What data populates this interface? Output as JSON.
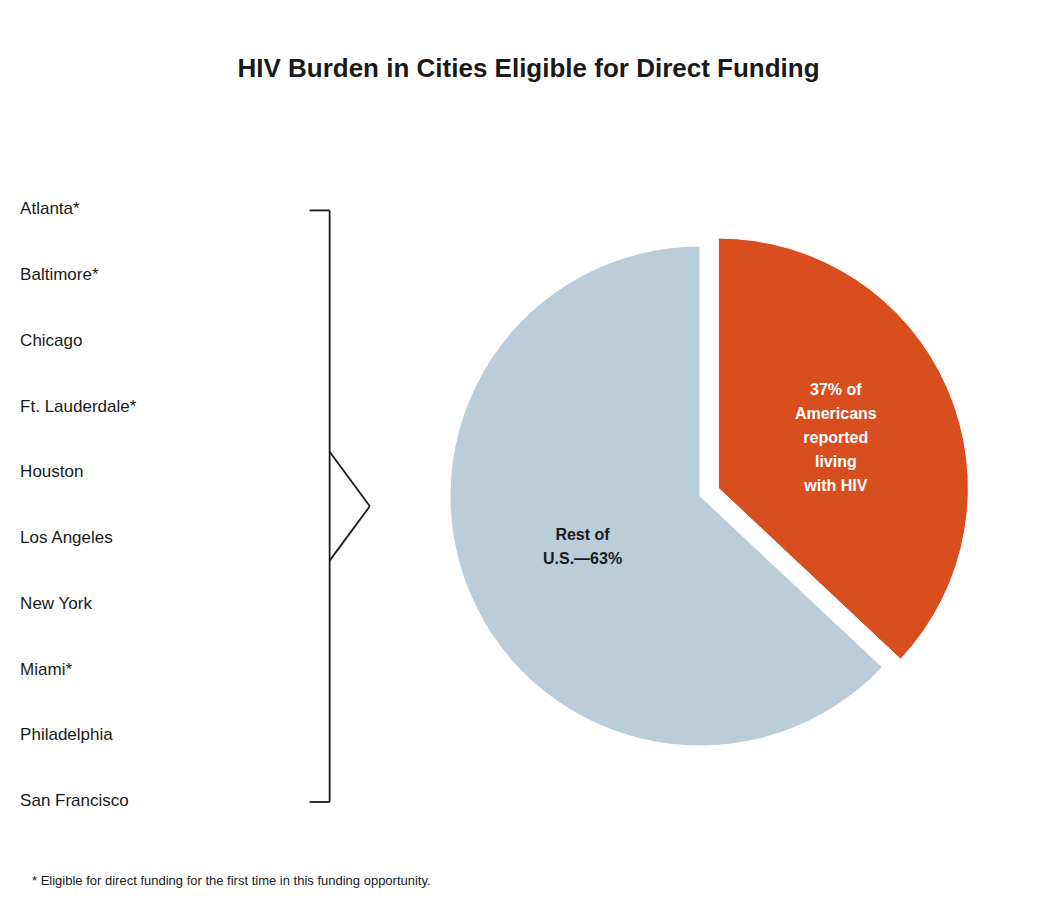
{
  "chart_data": {
    "type": "pie",
    "title": "HIV Burden in Cities Eligible for Direct Funding",
    "categories": [
      "37% of\nAmericans\nreported\nliving\nwith HIV",
      "Rest of\nU.S.—63%"
    ],
    "values": [
      37,
      63
    ],
    "colors": [
      "#D94E1F",
      "#BACDD8"
    ],
    "annotations": [
      "Atlanta*",
      "Baltimore*",
      "Chicago",
      "Ft. Lauderdale*",
      "Houston",
      "Los Angeles",
      "New York",
      "Miami*",
      "Philadelphia",
      "San Francisco"
    ],
    "footnote": "* Eligible for direct funding for the first time in this funding opportunity.",
    "legend": false
  }
}
